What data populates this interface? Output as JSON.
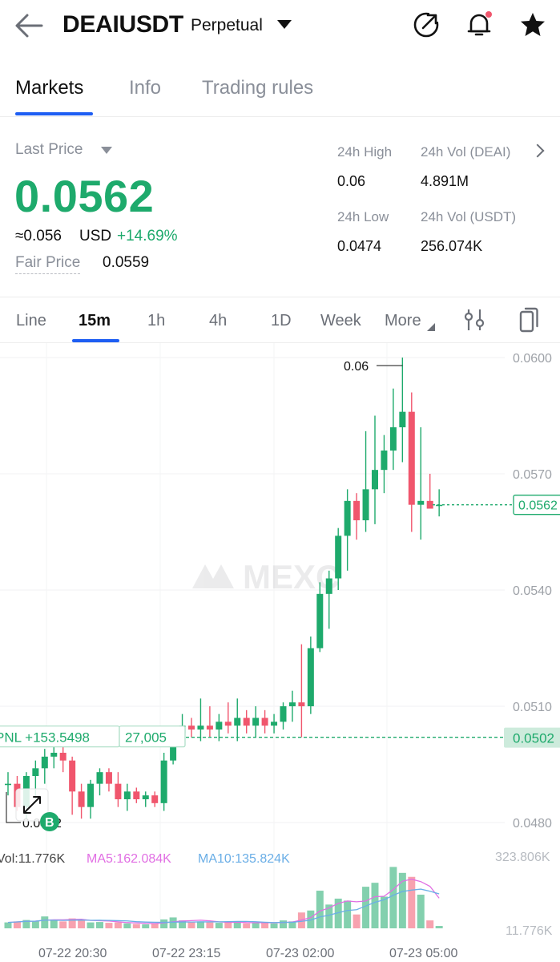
{
  "header": {
    "symbol": "DEAIUSDT",
    "contract_type": "Perpetual",
    "icons": [
      "back-arrow-icon",
      "share-icon",
      "bell-icon",
      "star-icon"
    ]
  },
  "tabs": [
    {
      "label": "Markets",
      "active": true
    },
    {
      "label": "Info",
      "active": false
    },
    {
      "label": "Trading rules",
      "active": false
    }
  ],
  "price": {
    "last_price_label": "Last Price",
    "last_price": "0.0562",
    "approx": "≈0.056",
    "approx_unit": "USD",
    "change": "+14.69%",
    "fair_price_label": "Fair Price",
    "fair_price": "0.0559"
  },
  "stats": {
    "high_label": "24h High",
    "high_value": "0.06",
    "vol_base_label": "24h Vol (DEAI)",
    "vol_base_value": "4.891M",
    "low_label": "24h Low",
    "low_value": "0.0474",
    "vol_quote_label": "24h Vol  (USDT)",
    "vol_quote_value": "256.074K"
  },
  "intervals": [
    {
      "label": "Line",
      "active": false
    },
    {
      "label": "15m",
      "active": true
    },
    {
      "label": "1h",
      "active": false
    },
    {
      "label": "4h",
      "active": false
    },
    {
      "label": "1D",
      "active": false
    },
    {
      "label": "Week",
      "active": false
    },
    {
      "label": "More",
      "active": false
    }
  ],
  "colors": {
    "up": "#1eaa6c",
    "down": "#f0566d",
    "accent": "#1e5ef3",
    "ma5": "#e16fe3",
    "ma10": "#6aaee6"
  },
  "chart_data": {
    "type": "candlestick",
    "y_ticks": [
      "0.0600",
      "0.0570",
      "0.0540",
      "0.0510",
      "0.0480"
    ],
    "ylim": [
      0.0475,
      0.0603
    ],
    "x_ticks": [
      "07-22 20:30",
      "07-22 23:15",
      "07-23 02:00",
      "07-23 05:00"
    ],
    "high_marker": "0.06",
    "low_marker_text": "0.0482",
    "last_price_tag": "0.0562",
    "position_price_tag": "0.0502",
    "pnl_label": "PNL +153.5498",
    "position_qty": "27,005",
    "buy_marker": "B",
    "watermark": "MEXC",
    "volume": {
      "vol_label": "Vol:11.776K",
      "ma5_label": "MA5:162.084K",
      "ma10_label": "MA10:135.824K",
      "max_label": "323.806K",
      "min_label": "11.776K",
      "max_value": 323.806
    },
    "candles": [
      {
        "o": 0.049,
        "h": 0.0493,
        "l": 0.0487,
        "c": 0.049,
        "v": 30
      },
      {
        "o": 0.049,
        "h": 0.0492,
        "l": 0.0483,
        "c": 0.0484,
        "v": 35
      },
      {
        "o": 0.0484,
        "h": 0.0493,
        "l": 0.0481,
        "c": 0.0492,
        "v": 42
      },
      {
        "o": 0.0492,
        "h": 0.0496,
        "l": 0.0486,
        "c": 0.0494,
        "v": 38
      },
      {
        "o": 0.0494,
        "h": 0.0499,
        "l": 0.049,
        "c": 0.0497,
        "v": 60
      },
      {
        "o": 0.0497,
        "h": 0.05,
        "l": 0.0494,
        "c": 0.0498,
        "v": 40
      },
      {
        "o": 0.0498,
        "h": 0.05,
        "l": 0.0493,
        "c": 0.0496,
        "v": 35
      },
      {
        "o": 0.0496,
        "h": 0.0497,
        "l": 0.0482,
        "c": 0.0488,
        "v": 50
      },
      {
        "o": 0.0488,
        "h": 0.049,
        "l": 0.0481,
        "c": 0.0484,
        "v": 45
      },
      {
        "o": 0.0484,
        "h": 0.0491,
        "l": 0.0481,
        "c": 0.049,
        "v": 30
      },
      {
        "o": 0.049,
        "h": 0.0494,
        "l": 0.0487,
        "c": 0.0493,
        "v": 32
      },
      {
        "o": 0.0493,
        "h": 0.0494,
        "l": 0.0488,
        "c": 0.049,
        "v": 28
      },
      {
        "o": 0.049,
        "h": 0.0493,
        "l": 0.0484,
        "c": 0.0486,
        "v": 30
      },
      {
        "o": 0.0486,
        "h": 0.049,
        "l": 0.0483,
        "c": 0.0488,
        "v": 25
      },
      {
        "o": 0.0488,
        "h": 0.0489,
        "l": 0.0485,
        "c": 0.0486,
        "v": 22
      },
      {
        "o": 0.0486,
        "h": 0.0488,
        "l": 0.0484,
        "c": 0.0487,
        "v": 20
      },
      {
        "o": 0.0487,
        "h": 0.0488,
        "l": 0.0484,
        "c": 0.0485,
        "v": 25
      },
      {
        "o": 0.0485,
        "h": 0.0498,
        "l": 0.0483,
        "c": 0.0496,
        "v": 45
      },
      {
        "o": 0.0496,
        "h": 0.0504,
        "l": 0.0495,
        "c": 0.0503,
        "v": 55
      },
      {
        "o": 0.0503,
        "h": 0.0508,
        "l": 0.05,
        "c": 0.0505,
        "v": 40
      },
      {
        "o": 0.0505,
        "h": 0.0507,
        "l": 0.0502,
        "c": 0.0504,
        "v": 30
      },
      {
        "o": 0.0504,
        "h": 0.0512,
        "l": 0.0501,
        "c": 0.0505,
        "v": 35
      },
      {
        "o": 0.0505,
        "h": 0.051,
        "l": 0.0502,
        "c": 0.0504,
        "v": 30
      },
      {
        "o": 0.0504,
        "h": 0.0508,
        "l": 0.0501,
        "c": 0.0506,
        "v": 28
      },
      {
        "o": 0.0506,
        "h": 0.0511,
        "l": 0.0503,
        "c": 0.0505,
        "v": 30
      },
      {
        "o": 0.0505,
        "h": 0.0512,
        "l": 0.0501,
        "c": 0.0507,
        "v": 32
      },
      {
        "o": 0.0507,
        "h": 0.0509,
        "l": 0.0503,
        "c": 0.0505,
        "v": 25
      },
      {
        "o": 0.0505,
        "h": 0.051,
        "l": 0.0502,
        "c": 0.0507,
        "v": 28
      },
      {
        "o": 0.0507,
        "h": 0.0509,
        "l": 0.0503,
        "c": 0.0505,
        "v": 30
      },
      {
        "o": 0.0505,
        "h": 0.0508,
        "l": 0.0503,
        "c": 0.0506,
        "v": 25
      },
      {
        "o": 0.0506,
        "h": 0.0511,
        "l": 0.0504,
        "c": 0.051,
        "v": 40
      },
      {
        "o": 0.051,
        "h": 0.0514,
        "l": 0.0506,
        "c": 0.0511,
        "v": 35
      },
      {
        "o": 0.0511,
        "h": 0.0526,
        "l": 0.0502,
        "c": 0.051,
        "v": 80
      },
      {
        "o": 0.051,
        "h": 0.0528,
        "l": 0.0508,
        "c": 0.0525,
        "v": 90
      },
      {
        "o": 0.0525,
        "h": 0.0542,
        "l": 0.0524,
        "c": 0.0539,
        "v": 190
      },
      {
        "o": 0.0539,
        "h": 0.0545,
        "l": 0.053,
        "c": 0.0543,
        "v": 120
      },
      {
        "o": 0.0543,
        "h": 0.0556,
        "l": 0.054,
        "c": 0.0554,
        "v": 150
      },
      {
        "o": 0.0554,
        "h": 0.0566,
        "l": 0.0545,
        "c": 0.0563,
        "v": 140
      },
      {
        "o": 0.0563,
        "h": 0.0565,
        "l": 0.0553,
        "c": 0.0558,
        "v": 70
      },
      {
        "o": 0.0558,
        "h": 0.0581,
        "l": 0.0555,
        "c": 0.0566,
        "v": 210
      },
      {
        "o": 0.0566,
        "h": 0.0585,
        "l": 0.0557,
        "c": 0.0571,
        "v": 230
      },
      {
        "o": 0.0571,
        "h": 0.058,
        "l": 0.0565,
        "c": 0.0576,
        "v": 160
      },
      {
        "o": 0.0576,
        "h": 0.0592,
        "l": 0.0571,
        "c": 0.0582,
        "v": 310
      },
      {
        "o": 0.0582,
        "h": 0.06,
        "l": 0.0573,
        "c": 0.0586,
        "v": 280
      },
      {
        "o": 0.0586,
        "h": 0.0591,
        "l": 0.0555,
        "c": 0.0562,
        "v": 260
      },
      {
        "o": 0.0562,
        "h": 0.0582,
        "l": 0.0553,
        "c": 0.0563,
        "v": 170
      },
      {
        "o": 0.0563,
        "h": 0.057,
        "l": 0.0561,
        "c": 0.0561,
        "v": 40
      },
      {
        "o": 0.0562,
        "h": 0.0566,
        "l": 0.0559,
        "c": 0.0562,
        "v": 12
      }
    ]
  }
}
